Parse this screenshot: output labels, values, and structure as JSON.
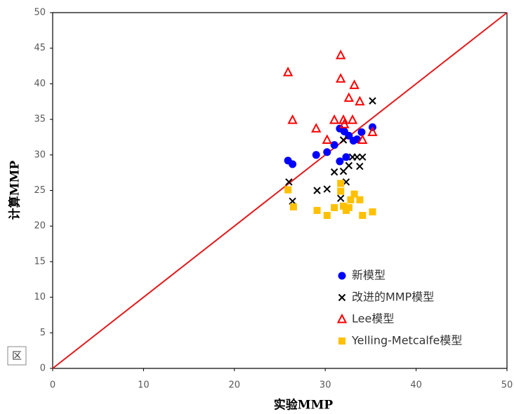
{
  "chart_data": {
    "type": "scatter",
    "x_label": "实验MMP",
    "y_label": "计算MMP",
    "xlim": [
      0,
      50
    ],
    "ylim": [
      0,
      50
    ],
    "xticks": [
      0,
      10,
      20,
      30,
      40,
      50
    ],
    "yticks": [
      0,
      5,
      10,
      15,
      20,
      25,
      30,
      35,
      40,
      45,
      50
    ],
    "grid": false,
    "diagonal": true,
    "diagonal_color": "#e31a1c",
    "legend": "lower right",
    "annotation": "区",
    "series": [
      {
        "name": "新模型",
        "color": "#0000ff",
        "marker": "circle",
        "x": [
          25.9,
          26.4,
          29.0,
          30.2,
          31.0,
          31.6,
          31.6,
          32.1,
          32.3,
          32.6,
          33.1,
          33.5,
          34.0,
          35.2
        ],
        "values": [
          29.2,
          28.7,
          30.0,
          30.4,
          31.4,
          29.1,
          33.7,
          33.3,
          29.7,
          32.7,
          32.0,
          32.2,
          33.2,
          33.9
        ]
      },
      {
        "name": "改进的MMP模型",
        "color": "#000000",
        "marker": "x",
        "x": [
          26.0,
          26.4,
          29.1,
          30.2,
          31.0,
          31.7,
          32.0,
          32.3,
          32.6,
          33.0,
          33.5,
          33.8,
          34.1,
          32.0,
          35.2
        ],
        "values": [
          26.2,
          23.5,
          25.0,
          25.2,
          27.6,
          23.9,
          27.7,
          26.2,
          28.5,
          29.7,
          29.7,
          28.4,
          29.7,
          32.1,
          37.6
        ]
      },
      {
        "name": "Lee模型",
        "color": "#ff0000",
        "marker": "triangle",
        "x": [
          25.9,
          26.4,
          29.0,
          30.2,
          31.0,
          31.7,
          31.7,
          32.0,
          32.1,
          32.6,
          33.0,
          33.2,
          33.8,
          34.1,
          35.2
        ],
        "values": [
          41.6,
          34.9,
          33.7,
          32.1,
          34.9,
          44.0,
          40.7,
          34.9,
          34.3,
          38.0,
          34.9,
          39.8,
          37.5,
          32.1,
          33.2
        ]
      },
      {
        "name": "Yelling-Metcalfe模型",
        "color": "#ffc000",
        "marker": "square",
        "x": [
          25.9,
          26.5,
          29.1,
          30.2,
          31.0,
          31.7,
          31.7,
          32.0,
          32.3,
          32.6,
          32.8,
          33.2,
          33.8,
          34.1,
          35.2
        ],
        "values": [
          25.1,
          22.7,
          22.2,
          21.5,
          22.6,
          26.0,
          24.9,
          22.8,
          22.2,
          22.6,
          23.7,
          24.5,
          23.7,
          21.5,
          22.0
        ]
      }
    ]
  }
}
